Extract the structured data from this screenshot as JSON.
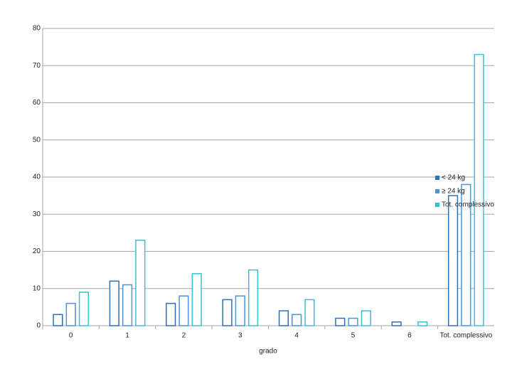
{
  "chart_data": {
    "type": "bar",
    "x_label": "grado",
    "categories": [
      "0",
      "1",
      "2",
      "3",
      "4",
      "5",
      "6",
      "Tot. complessivo"
    ],
    "series": [
      {
        "name": "< 24 kg",
        "color": "#2f6fb8",
        "values": [
          3,
          12,
          6,
          7,
          4,
          2,
          1,
          35
        ]
      },
      {
        "name": "≥ 24 kg",
        "color": "#4d93d6",
        "values": [
          6,
          11,
          8,
          8,
          3,
          2,
          0,
          38
        ]
      },
      {
        "name": "Tot. complessivo",
        "color": "#35c3d3",
        "values": [
          9,
          23,
          14,
          15,
          7,
          4,
          1,
          73
        ]
      }
    ],
    "ylim": [
      0,
      80
    ],
    "yticks": [
      0,
      10,
      20,
      30,
      40,
      50,
      60,
      70,
      80
    ],
    "grid": true
  }
}
